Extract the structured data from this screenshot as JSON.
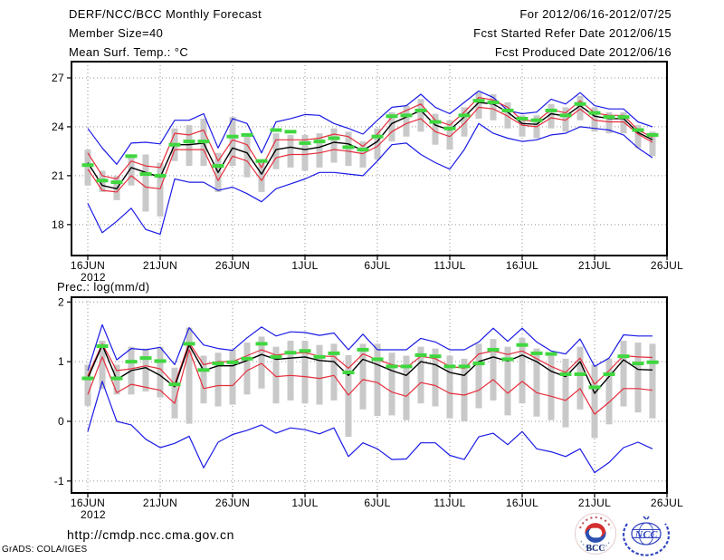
{
  "header": {
    "title": "DERF/NCC/BCC Monthly Forecast",
    "member_size": "Member Size=40",
    "top_panel_label": "Mean Surf. Temp.: °C",
    "for_range": "For 2012/06/16-2012/07/25",
    "fcst_started": "Fcst Started Refer Date 2012/06/15",
    "fcst_produced": "Fcst Produced Date 2012/06/16"
  },
  "between_panels": {
    "prec_label": "Prec.: log(mm/d)"
  },
  "footer": {
    "url": "http://cmdp.ncc.cma.gov.cn",
    "credit": "GrADS: COLA/IGES"
  },
  "logos": {
    "bcc": "BCC",
    "ncc": "NCC"
  },
  "colors": {
    "blue": "#1a1ae6",
    "red": "#e62e3c",
    "green": "#3fd73f",
    "black": "#000000",
    "bar": "#c9c9c9",
    "grid": "#909090"
  },
  "chart_data": [
    {
      "id": "temperature",
      "type": "line",
      "title": "Mean Surf. Temp.: °C",
      "x_tick_labels": [
        "16JUN",
        "21JUN",
        "26JUN",
        "1JUL",
        "6JUL",
        "11JUL",
        "16JUL",
        "21JUL",
        "26JUL"
      ],
      "x_year": "2012",
      "yticks": [
        27,
        24,
        21,
        18
      ],
      "ylim": [
        16.1,
        28.0
      ],
      "grid": true,
      "n_days": 40,
      "bars": {
        "name": "member-spread",
        "top": [
          22.6,
          21.3,
          21.0,
          22.3,
          22.3,
          21.8,
          23.9,
          24.1,
          24.5,
          22.4,
          24.6,
          23.4,
          22.0,
          23.6,
          23.5,
          23.5,
          23.6,
          23.9,
          23.7,
          23.1,
          23.9,
          24.9,
          25.3,
          25.7,
          24.8,
          24.4,
          25.2,
          26.1,
          26.0,
          25.5,
          24.7,
          24.7,
          25.4,
          25.2,
          25.9,
          25.2,
          24.9,
          24.9,
          24.1,
          23.7
        ],
        "bottom": [
          20.4,
          20.0,
          19.5,
          20.4,
          18.8,
          18.5,
          21.9,
          21.6,
          21.6,
          20.0,
          21.6,
          20.9,
          20.0,
          21.4,
          21.5,
          21.3,
          21.5,
          21.8,
          21.6,
          21.5,
          22.0,
          23.1,
          23.4,
          23.7,
          22.9,
          22.6,
          23.4,
          24.5,
          24.4,
          23.9,
          23.4,
          23.3,
          23.9,
          23.7,
          24.4,
          23.7,
          23.6,
          23.6,
          22.7,
          22.2
        ]
      },
      "series": [
        {
          "name": "ensemble-max",
          "color": "blue",
          "style": "line",
          "values": [
            23.9,
            22.7,
            21.7,
            23.0,
            23.05,
            22.95,
            24.4,
            24.4,
            24.8,
            22.7,
            24.5,
            24.2,
            22.4,
            24.3,
            24.5,
            24.75,
            24.7,
            24.2,
            23.9,
            23.55,
            24.4,
            25.2,
            25.3,
            26.0,
            25.2,
            24.8,
            25.5,
            26.2,
            25.8,
            25.0,
            24.8,
            24.9,
            25.7,
            25.4,
            26.1,
            25.3,
            25.1,
            25.1,
            24.3,
            24.0
          ]
        },
        {
          "name": "ensemble-min",
          "color": "blue",
          "style": "line",
          "values": [
            19.3,
            17.5,
            18.2,
            19.0,
            17.7,
            17.4,
            20.8,
            20.6,
            20.6,
            20.1,
            20.3,
            19.9,
            19.4,
            20.2,
            20.5,
            20.8,
            21.2,
            21.2,
            21.1,
            21.0,
            21.9,
            22.9,
            23.0,
            22.3,
            21.8,
            21.4,
            22.6,
            24.2,
            23.6,
            23.3,
            23.1,
            23.2,
            23.5,
            23.6,
            24.0,
            23.9,
            23.8,
            23.5,
            22.7,
            22.1
          ]
        },
        {
          "name": "upper-bound",
          "color": "red",
          "style": "line",
          "values": [
            22.4,
            21.0,
            20.8,
            21.9,
            21.6,
            21.5,
            23.6,
            23.5,
            23.8,
            21.9,
            23.2,
            22.9,
            21.5,
            23.2,
            23.2,
            23.2,
            23.3,
            23.55,
            23.4,
            22.8,
            23.55,
            24.6,
            25.0,
            25.4,
            24.4,
            24.1,
            24.9,
            25.8,
            25.65,
            25.2,
            24.4,
            24.35,
            25.05,
            24.85,
            25.6,
            24.85,
            24.7,
            24.7,
            23.8,
            23.35
          ]
        },
        {
          "name": "lower-bound",
          "color": "red",
          "style": "line",
          "values": [
            21.4,
            20.1,
            20.0,
            21.0,
            20.3,
            20.2,
            22.6,
            22.6,
            22.6,
            20.7,
            22.2,
            21.9,
            20.7,
            22.1,
            22.3,
            22.3,
            22.4,
            22.6,
            22.5,
            22.35,
            22.8,
            23.7,
            24.2,
            24.5,
            23.7,
            23.4,
            24.2,
            25.2,
            25.1,
            24.65,
            24.1,
            24.0,
            24.55,
            24.4,
            25.1,
            24.4,
            24.3,
            24.3,
            23.55,
            23.05
          ]
        },
        {
          "name": "ensemble-mean",
          "color": "black",
          "style": "line",
          "values": [
            21.8,
            20.4,
            20.2,
            21.5,
            21.2,
            20.9,
            22.9,
            22.9,
            23.0,
            21.2,
            22.7,
            22.4,
            21.1,
            22.6,
            22.75,
            22.6,
            22.75,
            23.05,
            22.95,
            22.55,
            23.1,
            24.2,
            24.6,
            25.0,
            24.1,
            23.8,
            24.6,
            25.5,
            25.4,
            24.9,
            24.2,
            24.15,
            24.8,
            24.65,
            25.3,
            24.65,
            24.5,
            24.5,
            23.65,
            23.2
          ]
        },
        {
          "name": "observation",
          "color": "green",
          "style": "dashes",
          "values": [
            21.65,
            20.7,
            20.6,
            22.2,
            21.1,
            21.0,
            22.9,
            23.1,
            23.1,
            21.6,
            23.4,
            23.5,
            21.9,
            23.8,
            23.7,
            23.0,
            23.1,
            23.3,
            22.75,
            22.6,
            23.4,
            24.65,
            24.7,
            25.0,
            24.3,
            23.9,
            24.7,
            25.6,
            25.5,
            25.0,
            24.5,
            24.4,
            25.0,
            24.7,
            25.4,
            24.85,
            24.6,
            24.6,
            23.8,
            23.5
          ]
        }
      ]
    },
    {
      "id": "precipitation",
      "type": "line",
      "title": "Prec.: log(mm/d)",
      "x_tick_labels": [
        "16JUN",
        "21JUN",
        "26JUN",
        "1JUL",
        "6JUL",
        "11JUL",
        "16JUL",
        "21JUL",
        "26JUL"
      ],
      "x_year": "2012",
      "yticks": [
        2,
        1,
        0,
        -1
      ],
      "ylim": [
        -1.2,
        2.08
      ],
      "grid": true,
      "n_days": 40,
      "bars": {
        "name": "member-spread",
        "top": [
          0.95,
          1.35,
          0.95,
          1.25,
          1.22,
          1.25,
          0.9,
          1.57,
          1.1,
          1.15,
          1.2,
          1.32,
          1.42,
          1.25,
          1.35,
          1.35,
          1.28,
          1.3,
          1.11,
          1.3,
          1.3,
          1.15,
          1.1,
          1.25,
          1.22,
          1.1,
          1.05,
          1.3,
          1.38,
          1.25,
          1.4,
          1.22,
          1.1,
          1.05,
          1.25,
          0.95,
          1.05,
          1.35,
          1.32,
          1.3
        ],
        "bottom": [
          0.26,
          0.54,
          0.45,
          0.45,
          0.5,
          0.4,
          0.05,
          -0.04,
          0.3,
          0.25,
          0.28,
          0.45,
          0.55,
          0.3,
          0.35,
          0.3,
          0.28,
          0.35,
          -0.26,
          0.2,
          0.09,
          0.1,
          0.02,
          0.3,
          0.25,
          0.05,
          0.0,
          0.22,
          0.35,
          0.1,
          0.3,
          0.08,
          0.02,
          -0.1,
          0.2,
          -0.28,
          -0.05,
          0.25,
          0.15,
          0.05
        ]
      },
      "series": [
        {
          "name": "ensemble-max",
          "color": "blue",
          "style": "line",
          "values": [
            0.85,
            1.62,
            1.03,
            1.22,
            1.2,
            1.24,
            0.95,
            1.57,
            1.28,
            1.22,
            1.19,
            1.4,
            1.58,
            1.43,
            1.5,
            1.49,
            1.44,
            1.48,
            1.2,
            1.46,
            1.2,
            1.2,
            1.2,
            1.39,
            1.33,
            1.2,
            1.2,
            1.33,
            1.56,
            1.34,
            1.56,
            1.33,
            1.18,
            1.13,
            1.38,
            0.92,
            1.06,
            1.45,
            1.43,
            1.43
          ]
        },
        {
          "name": "ensemble-min",
          "color": "blue",
          "style": "line",
          "values": [
            -0.17,
            0.67,
            0.0,
            -0.06,
            -0.3,
            -0.44,
            -0.37,
            -0.25,
            -0.78,
            -0.35,
            -0.22,
            -0.15,
            -0.06,
            -0.2,
            -0.11,
            -0.14,
            -0.21,
            -0.11,
            -0.59,
            -0.36,
            -0.46,
            -0.64,
            -0.63,
            -0.36,
            -0.36,
            -0.57,
            -0.64,
            -0.26,
            -0.2,
            -0.39,
            -0.17,
            -0.46,
            -0.51,
            -0.59,
            -0.46,
            -0.86,
            -0.69,
            -0.44,
            -0.35,
            -0.46
          ]
        },
        {
          "name": "upper-bound",
          "color": "red",
          "style": "line",
          "values": [
            0.76,
            1.3,
            0.85,
            0.88,
            0.93,
            0.88,
            0.62,
            1.32,
            0.95,
            1.0,
            1.0,
            1.1,
            1.2,
            1.11,
            1.14,
            1.15,
            1.09,
            1.09,
            0.89,
            1.13,
            1.03,
            0.95,
            0.9,
            1.09,
            1.05,
            0.92,
            0.89,
            1.13,
            1.18,
            1.12,
            1.18,
            1.05,
            0.92,
            0.82,
            1.06,
            0.62,
            0.85,
            1.1,
            1.08,
            1.07
          ]
        },
        {
          "name": "lower-bound",
          "color": "red",
          "style": "line",
          "values": [
            0.45,
            1.08,
            0.48,
            0.62,
            0.57,
            0.52,
            0.3,
            1.2,
            0.55,
            0.6,
            0.6,
            0.85,
            0.97,
            0.75,
            0.77,
            0.75,
            0.72,
            0.77,
            0.44,
            0.7,
            0.65,
            0.49,
            0.42,
            0.65,
            0.6,
            0.47,
            0.44,
            0.52,
            0.7,
            0.47,
            0.67,
            0.48,
            0.42,
            0.35,
            0.55,
            0.12,
            0.32,
            0.55,
            0.55,
            0.52
          ]
        },
        {
          "name": "ensemble-mean",
          "color": "black",
          "style": "line",
          "values": [
            0.72,
            1.28,
            0.7,
            0.85,
            0.9,
            0.77,
            0.58,
            1.28,
            0.85,
            0.93,
            0.93,
            1.02,
            1.12,
            1.04,
            1.06,
            1.08,
            1.02,
            1.0,
            0.77,
            1.04,
            0.95,
            0.85,
            0.77,
            1.0,
            0.95,
            0.82,
            0.77,
            1.0,
            1.08,
            1.01,
            1.11,
            1.0,
            0.84,
            0.75,
            1.0,
            0.47,
            0.75,
            1.03,
            0.87,
            0.86
          ]
        },
        {
          "name": "observation",
          "color": "green",
          "style": "dashes",
          "values": [
            0.72,
            1.26,
            0.72,
            1.0,
            1.06,
            1.01,
            0.62,
            1.3,
            0.86,
            0.97,
            0.99,
            1.05,
            1.3,
            1.08,
            1.15,
            1.18,
            1.08,
            1.14,
            0.82,
            1.2,
            1.04,
            0.92,
            0.92,
            1.11,
            1.09,
            0.92,
            0.92,
            0.97,
            1.2,
            1.04,
            1.28,
            1.14,
            1.13,
            0.79,
            0.79,
            0.57,
            0.79,
            1.09,
            0.97,
            0.99
          ]
        }
      ]
    }
  ]
}
